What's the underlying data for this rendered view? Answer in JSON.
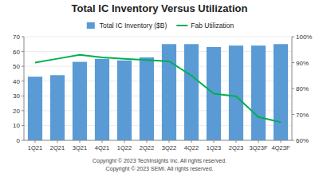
{
  "chart_data": {
    "type": "bar",
    "title": "Total IC Inventory Versus Utilization",
    "categories": [
      "1Q21",
      "2Q21",
      "3Q21",
      "4Q21",
      "1Q22",
      "2Q22",
      "3Q22",
      "4Q22",
      "1Q23",
      "2Q23",
      "3Q23F",
      "4Q23F"
    ],
    "series": [
      {
        "name": "Total IC Inventory ($B)",
        "type": "bar",
        "color": "#5B9BD5",
        "values": [
          43,
          44,
          53,
          55,
          54,
          56,
          65,
          65,
          63,
          64,
          64,
          65
        ]
      },
      {
        "name": "Fab Utilization",
        "type": "line",
        "axis": "y2",
        "color": "#00B050",
        "values": [
          90,
          91.5,
          93,
          92,
          91.5,
          91,
          90.5,
          85,
          78,
          77,
          69,
          67
        ]
      }
    ],
    "ylim": [
      0,
      70
    ],
    "yticks": [
      0,
      10,
      20,
      30,
      40,
      50,
      60,
      70
    ],
    "y2lim": [
      60,
      100
    ],
    "y2ticks": [
      {
        "value": 60,
        "label": "60%"
      },
      {
        "value": 70,
        "label": "70%"
      },
      {
        "value": 80,
        "label": "80%"
      },
      {
        "value": 90,
        "label": "90%"
      },
      {
        "value": 100,
        "label": "100%"
      }
    ],
    "grid": true,
    "legend": "top",
    "annotations": [
      "Copyright © 2023 TechInsights Inc.  All rights reserved.",
      "Copyright © 2023 SEMI.  All rights reserved."
    ]
  }
}
